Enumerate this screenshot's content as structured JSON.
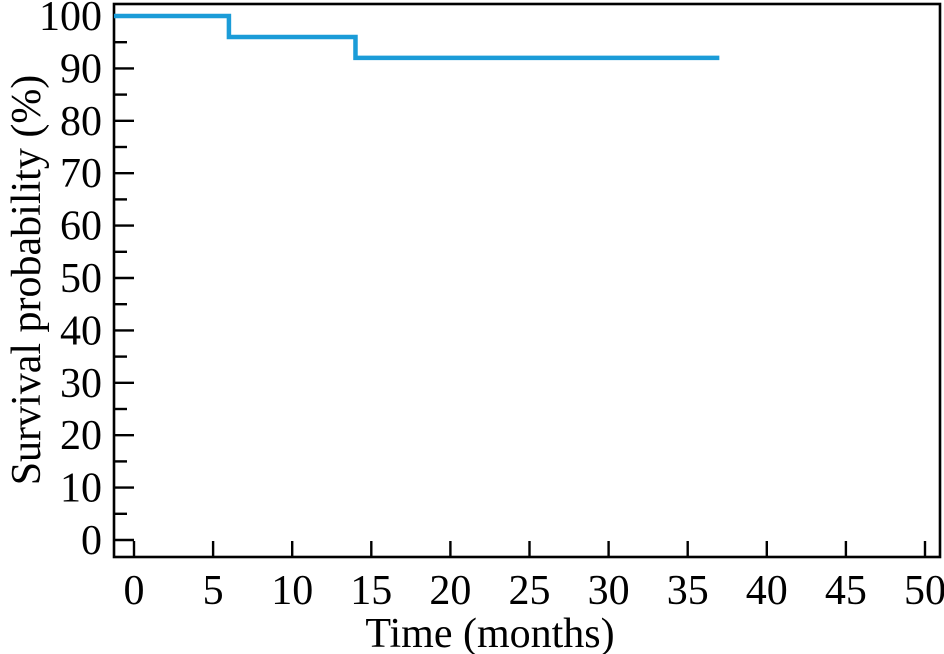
{
  "figure": {
    "background": "#ffffff"
  },
  "chart_data": {
    "type": "line",
    "chart_style": "kaplan-meier-step",
    "title": "",
    "xlabel": "Time (months)",
    "ylabel": "Survival probability (%)",
    "xlim": [
      0,
      50
    ],
    "ylim": [
      0,
      100
    ],
    "x_ticks": [
      0,
      5,
      10,
      15,
      20,
      25,
      30,
      35,
      40,
      45,
      50
    ],
    "y_ticks_major": [
      0,
      10,
      20,
      30,
      40,
      50,
      60,
      70,
      80,
      90,
      100
    ],
    "y_ticks_minor": [
      5,
      15,
      25,
      35,
      45,
      55,
      65,
      75,
      85,
      95
    ],
    "grid": false,
    "legend": false,
    "frame": "full-box",
    "tick_direction": "in",
    "series": [
      {
        "name": "survival-curve",
        "color": "#1b9cd8",
        "step": "post",
        "x": [
          0,
          6,
          14,
          37
        ],
        "y": [
          100,
          96,
          92,
          92
        ]
      }
    ],
    "colors": {
      "curve": "#1b9cd8",
      "axis": "#000000",
      "text": "#000000"
    }
  }
}
